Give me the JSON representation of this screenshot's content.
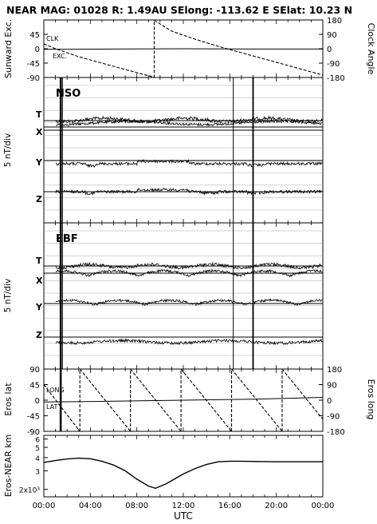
{
  "chart_data": [
    {
      "type": "line",
      "title": "NEAR MAG: 01028  R: 1.49AU  SElong: -113.62 E  SElat:  10.23 N",
      "panel": "sunward-clock",
      "ylabel_left": "Sunward Exc.",
      "ylabel_right": "Clock Angle",
      "ylim_left": [
        -90,
        90
      ],
      "ylim_right": [
        -180,
        180
      ],
      "yticks_left": [
        "45",
        "0",
        "-45",
        "-90"
      ],
      "yticks_right": [
        "180",
        "90",
        "0",
        "-90",
        "-180"
      ],
      "series": [
        {
          "name": "CLK",
          "x": [
            0,
            1,
            2,
            3,
            4,
            5,
            6,
            7,
            8,
            9.5,
            9.5,
            11,
            13,
            15,
            17,
            19,
            21,
            23,
            24
          ],
          "y": [
            30,
            0,
            -25,
            -50,
            -70,
            -90,
            -110,
            -130,
            -150,
            -178,
            178,
            110,
            60,
            15,
            -25,
            -65,
            -105,
            -145,
            -165
          ]
        },
        {
          "name": "EXC.",
          "x": [
            0,
            6,
            12,
            18,
            24
          ],
          "y": [
            -2,
            -1,
            0,
            -1,
            -1
          ]
        }
      ],
      "series_labels": [
        "CLK",
        "EXC."
      ]
    },
    {
      "type": "line",
      "panel": "NSO",
      "label": "NSO",
      "ylabel": "5 nT/div",
      "components": [
        "T",
        "X",
        "Y",
        "Z"
      ]
    },
    {
      "type": "line",
      "panel": "EBF",
      "label": "EBF",
      "ylabel": "5 nT/div",
      "components": [
        "T",
        "X",
        "Y",
        "Z"
      ]
    },
    {
      "type": "line",
      "panel": "eros-lat-long",
      "ylabel_left": "Eros lat",
      "ylabel_right": "Eros long",
      "ylim_left": [
        -90,
        90
      ],
      "ylim_right": [
        -180,
        180
      ],
      "yticks_left": [
        "90",
        "45",
        "0",
        "-45",
        "-90"
      ],
      "yticks_right": [
        "180",
        "90",
        "0",
        "-90",
        "-180"
      ],
      "series_labels": [
        "LONG",
        "LAT"
      ],
      "long_wrap_hours": [
        3.1,
        7.45,
        11.8,
        16.15,
        20.5
      ],
      "lat": {
        "x": [
          0,
          6,
          12,
          18,
          24
        ],
        "y": [
          -5,
          -3,
          0,
          3,
          8
        ]
      }
    },
    {
      "type": "line",
      "panel": "eros-near-distance",
      "ylabel": "Eros-NEAR km",
      "scale": "log",
      "yticks": [
        "6",
        "5",
        "4",
        "3",
        "2x10³"
      ],
      "series": [
        {
          "name": "distance",
          "x": [
            0,
            1,
            2,
            3,
            4,
            5,
            6,
            7,
            8,
            9,
            9.6,
            10.5,
            12,
            13,
            14,
            15,
            16,
            17,
            18,
            20,
            22,
            24
          ],
          "y": [
            3600,
            3750,
            3880,
            3950,
            3900,
            3700,
            3400,
            3000,
            2500,
            2150,
            2050,
            2250,
            2800,
            3150,
            3450,
            3650,
            3700,
            3700,
            3680,
            3650,
            3650,
            3650
          ]
        }
      ]
    }
  ],
  "xaxis": {
    "label": "UTC",
    "ticks": [
      "00:00",
      "04:00",
      "08:00",
      "12:00",
      "16:00",
      "20:00",
      "00:00"
    ],
    "range_hours": [
      0,
      24
    ]
  }
}
